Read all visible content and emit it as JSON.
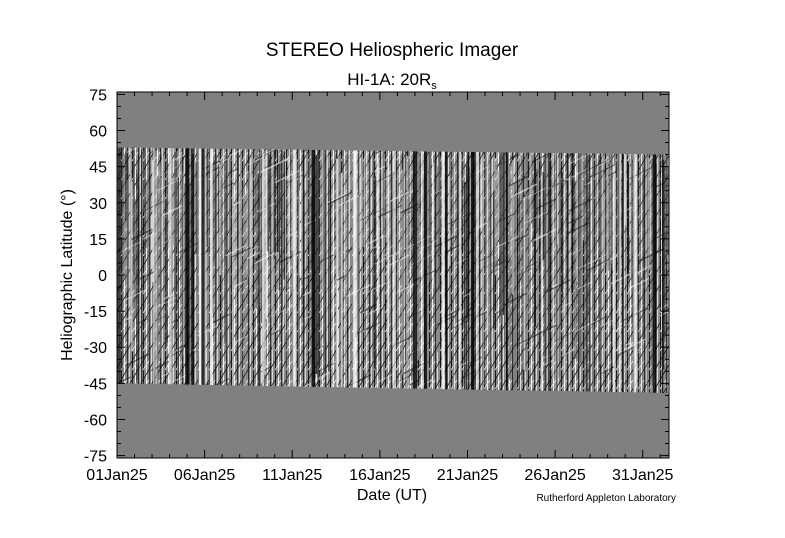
{
  "chart_data": {
    "type": "heatmap",
    "title": "STEREO Heliospheric Imager",
    "subtitle_prefix": "HI-1A: 20R",
    "subtitle_subscript": "s",
    "xlabel": "Date (UT)",
    "ylabel": "Heliographic Latitude (°)",
    "credit": "Rutherford Appleton Laboratory",
    "x_tick_labels": [
      "01Jan25",
      "06Jan25",
      "11Jan25",
      "16Jan25",
      "21Jan25",
      "26Jan25",
      "31Jan25"
    ],
    "x_tick_days": [
      1,
      6,
      11,
      16,
      21,
      26,
      31
    ],
    "xlim_days": [
      1,
      32.5
    ],
    "y_ticks": [
      75,
      60,
      45,
      30,
      15,
      0,
      -15,
      -30,
      -45,
      -60,
      -75
    ],
    "y_tick_labels": [
      "75",
      "60",
      "45",
      "30",
      "15",
      "0",
      "-15",
      "-30",
      "-45",
      "-60",
      "-75"
    ],
    "ylim": [
      -76,
      76
    ],
    "data_band_upper_latitude": [
      [
        1,
        53
      ],
      [
        32.5,
        50
      ]
    ],
    "data_band_lower_latitude": [
      [
        1,
        -45
      ],
      [
        32.5,
        -49
      ]
    ],
    "grid": false,
    "legend": "none",
    "colors": {
      "no_data": "#808080",
      "background": "#ffffff",
      "axes": "#000000"
    }
  }
}
